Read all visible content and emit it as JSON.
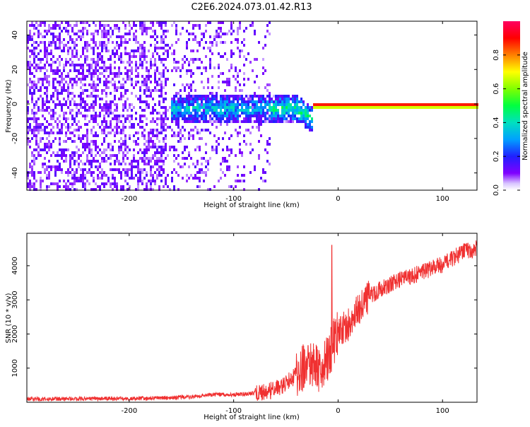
{
  "title": "C2E6.2024.073.01.42.R13",
  "chart_data": [
    {
      "type": "heatmap",
      "xlabel": "Height of straight line (km)",
      "ylabel": "Frequency (Hz)",
      "xlim": [
        -298,
        133
      ],
      "ylim": [
        -50,
        48
      ],
      "x_ticks": [
        -200,
        -100,
        0,
        100
      ],
      "y_ticks": [
        -40,
        -20,
        0,
        20,
        40
      ],
      "colorbar": {
        "label": "Normalized spectral amplitude",
        "range": [
          0,
          1
        ],
        "ticks": [
          0.0,
          0.2,
          0.4,
          0.6,
          0.8
        ],
        "colormap": "rainbow (white/violet low to magenta high)"
      },
      "features": [
        {
          "x_range": [
            -298,
            -65
          ],
          "y_range": [
            -50,
            48
          ],
          "amplitude": 0.05,
          "note": "broadband noise"
        },
        {
          "x_range": [
            -160,
            -65
          ],
          "y_center": 0,
          "y_halfwidth": 8,
          "amplitude": 0.25,
          "note": "echo band, drifting to negative frequency"
        },
        {
          "x_range": [
            -65,
            -25
          ],
          "y_center": 0,
          "y_halfwidth": 8,
          "amplitude": 0.35,
          "note": "strongest echo band"
        },
        {
          "x_range": [
            -25,
            133
          ],
          "y_center": 0,
          "y_halfwidth": 2,
          "amplitude": 1.0,
          "note": "narrow carrier line near 0 Hz"
        }
      ]
    },
    {
      "type": "line",
      "xlabel": "Height of straight line (km)",
      "ylabel": "SNR (10 * v/v)",
      "xlim": [
        -298,
        133
      ],
      "ylim": [
        0,
        4950
      ],
      "x_ticks": [
        -200,
        -100,
        0,
        100
      ],
      "y_ticks": [
        1000,
        2000,
        3000,
        4000
      ],
      "color": "#f03030",
      "series": [
        {
          "x": [
            -298,
            -250,
            -200,
            -160,
            -140,
            -120,
            -100,
            -90,
            -80,
            -70,
            -60,
            -50,
            -40,
            -30,
            -20,
            -15,
            -10,
            -5,
            0,
            10,
            20,
            30,
            40,
            50,
            60,
            80,
            100,
            120,
            133
          ],
          "y": [
            100,
            100,
            110,
            130,
            160,
            230,
            220,
            240,
            270,
            300,
            380,
            550,
            800,
            1100,
            1000,
            1000,
            1300,
            1700,
            2000,
            2300,
            2700,
            3100,
            3300,
            3450,
            3600,
            3800,
            4050,
            4400,
            4500
          ]
        }
      ]
    }
  ]
}
